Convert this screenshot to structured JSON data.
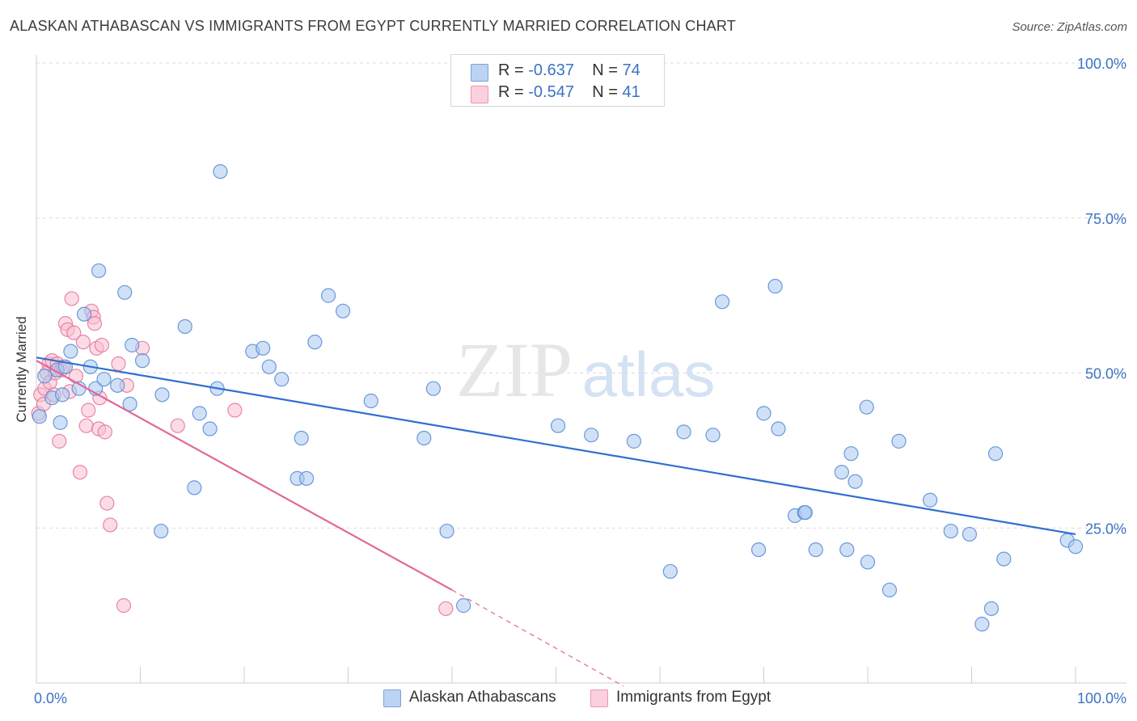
{
  "title": "ALASKAN ATHABASCAN VS IMMIGRANTS FROM EGYPT CURRENTLY MARRIED CORRELATION CHART",
  "source": "Source: ZipAtlas.com",
  "watermark": {
    "zip": "ZIP",
    "atlas": "atlas"
  },
  "legend": {
    "rows": [
      {
        "r_label": "R =",
        "r_value": "-0.637",
        "n_label": "N =",
        "n_value": "74"
      },
      {
        "r_label": "R =",
        "r_value": "-0.547",
        "n_label": "N =",
        "n_value": "41"
      }
    ]
  },
  "chart_data": {
    "type": "scatter",
    "title": "ALASKAN ATHABASCAN VS IMMIGRANTS FROM EGYPT CURRENTLY MARRIED CORRELATION CHART",
    "xlabel": "",
    "ylabel": "Currently Married",
    "xlim": [
      0,
      100
    ],
    "ylim": [
      0,
      100
    ],
    "x_tick_labels": [
      "0.0%",
      "100.0%"
    ],
    "y_tick_labels": [
      "100.0%",
      "75.0%",
      "50.0%",
      "25.0%"
    ],
    "y_ticks": [
      100,
      75,
      50,
      25
    ],
    "grid": true,
    "colors": {
      "blue_fill": "#a9c8f0",
      "blue_stroke": "#5b8fd6",
      "blue_line": "#2f6fcf",
      "pink_fill": "#f7bfd0",
      "pink_stroke": "#e8789c",
      "pink_line": "#e2679a",
      "tick_text": "#3b73c4"
    },
    "series": [
      {
        "name": "Alaskan Athabascans",
        "color": "#a9c8f0",
        "points": [
          [
            0.3,
            43.0
          ],
          [
            0.8,
            49.5
          ],
          [
            1.5,
            46.0
          ],
          [
            2.0,
            50.5
          ],
          [
            2.3,
            42.0
          ],
          [
            2.5,
            46.5
          ],
          [
            2.8,
            51.0
          ],
          [
            3.3,
            53.5
          ],
          [
            4.1,
            47.5
          ],
          [
            4.6,
            59.5
          ],
          [
            5.2,
            51.0
          ],
          [
            5.7,
            47.5
          ],
          [
            6.0,
            66.5
          ],
          [
            6.5,
            49.0
          ],
          [
            7.8,
            48.0
          ],
          [
            8.5,
            63.0
          ],
          [
            9.0,
            45.0
          ],
          [
            9.2,
            54.5
          ],
          [
            10.2,
            52.0
          ],
          [
            12.0,
            24.5
          ],
          [
            12.1,
            46.5
          ],
          [
            14.3,
            57.5
          ],
          [
            15.2,
            31.5
          ],
          [
            15.7,
            43.5
          ],
          [
            16.7,
            41.0
          ],
          [
            17.4,
            47.5
          ],
          [
            17.7,
            82.5
          ],
          [
            20.8,
            53.5
          ],
          [
            21.8,
            54.0
          ],
          [
            22.4,
            51.0
          ],
          [
            23.6,
            49.0
          ],
          [
            25.1,
            33.0
          ],
          [
            25.5,
            39.5
          ],
          [
            26.0,
            33.0
          ],
          [
            26.8,
            55.0
          ],
          [
            28.1,
            62.5
          ],
          [
            29.5,
            60.0
          ],
          [
            32.2,
            45.5
          ],
          [
            37.3,
            39.5
          ],
          [
            38.2,
            47.5
          ],
          [
            39.5,
            24.5
          ],
          [
            41.1,
            12.5
          ],
          [
            50.2,
            41.5
          ],
          [
            53.4,
            40.0
          ],
          [
            57.5,
            39.0
          ],
          [
            61.0,
            18.0
          ],
          [
            62.3,
            40.5
          ],
          [
            65.1,
            40.0
          ],
          [
            66.0,
            61.5
          ],
          [
            69.5,
            21.5
          ],
          [
            70.0,
            43.5
          ],
          [
            71.1,
            64.0
          ],
          [
            71.4,
            41.0
          ],
          [
            73.0,
            27.0
          ],
          [
            73.9,
            27.5
          ],
          [
            74.0,
            27.5
          ],
          [
            75.0,
            21.5
          ],
          [
            77.5,
            34.0
          ],
          [
            78.0,
            21.5
          ],
          [
            78.4,
            37.0
          ],
          [
            78.8,
            32.5
          ],
          [
            79.9,
            44.5
          ],
          [
            80.0,
            19.5
          ],
          [
            82.1,
            15.0
          ],
          [
            83.0,
            39.0
          ],
          [
            86.0,
            29.5
          ],
          [
            88.0,
            24.5
          ],
          [
            89.8,
            24.0
          ],
          [
            91.0,
            9.5
          ],
          [
            91.9,
            12.0
          ],
          [
            92.3,
            37.0
          ],
          [
            93.1,
            20.0
          ],
          [
            99.2,
            23.0
          ],
          [
            100.0,
            22.0
          ]
        ]
      },
      {
        "name": "Immigrants from Egypt",
        "color": "#f7bfd0",
        "points": [
          [
            0.2,
            43.5
          ],
          [
            0.4,
            46.5
          ],
          [
            0.7,
            45.0
          ],
          [
            0.8,
            47.5
          ],
          [
            1.0,
            50.0
          ],
          [
            1.2,
            51.5
          ],
          [
            1.3,
            48.5
          ],
          [
            1.5,
            52.0
          ],
          [
            1.7,
            46.5
          ],
          [
            1.8,
            50.0
          ],
          [
            2.0,
            51.5
          ],
          [
            2.2,
            39.0
          ],
          [
            2.4,
            50.5
          ],
          [
            2.6,
            51.0
          ],
          [
            2.8,
            58.0
          ],
          [
            3.0,
            57.0
          ],
          [
            3.2,
            47.0
          ],
          [
            3.4,
            62.0
          ],
          [
            3.6,
            56.5
          ],
          [
            3.8,
            49.5
          ],
          [
            4.2,
            34.0
          ],
          [
            4.5,
            55.0
          ],
          [
            4.8,
            41.5
          ],
          [
            5.0,
            44.0
          ],
          [
            5.3,
            60.0
          ],
          [
            5.5,
            59.0
          ],
          [
            5.6,
            58.0
          ],
          [
            5.8,
            54.0
          ],
          [
            6.0,
            41.0
          ],
          [
            6.1,
            46.0
          ],
          [
            6.3,
            54.5
          ],
          [
            6.6,
            40.5
          ],
          [
            6.8,
            29.0
          ],
          [
            7.1,
            25.5
          ],
          [
            7.9,
            51.5
          ],
          [
            8.4,
            12.5
          ],
          [
            8.7,
            48.0
          ],
          [
            10.2,
            54.0
          ],
          [
            13.6,
            41.5
          ],
          [
            19.1,
            44.0
          ],
          [
            39.4,
            12.0
          ]
        ]
      }
    ],
    "trendlines": [
      {
        "series": "Alaskan Athabascans",
        "x": [
          0,
          100
        ],
        "y": [
          52.5,
          24.0
        ],
        "style": "solid"
      },
      {
        "series": "Immigrants from Egypt",
        "x": [
          0,
          40
        ],
        "y": [
          52.0,
          15.0
        ],
        "style": "solid"
      },
      {
        "series": "Immigrants from Egypt",
        "x": [
          40,
          56.5
        ],
        "y": [
          15.0,
          -0.5
        ],
        "style": "dashed"
      }
    ]
  },
  "bottom_legend": [
    {
      "label": "Alaskan Athabascans"
    },
    {
      "label": "Immigrants from Egypt"
    }
  ]
}
